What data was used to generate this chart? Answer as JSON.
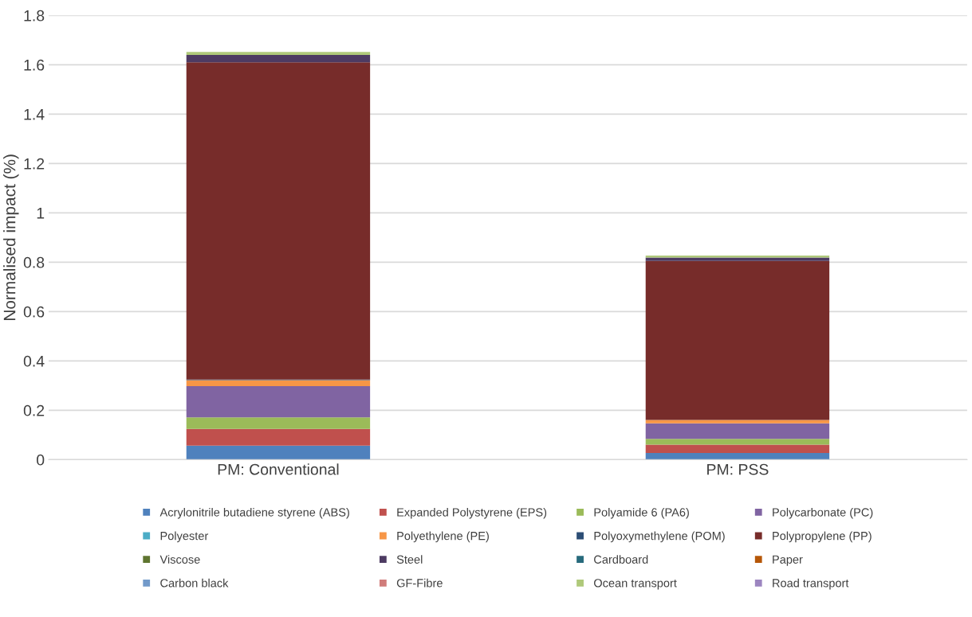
{
  "chart_data": {
    "type": "bar",
    "stacked": true,
    "ylabel": "Normalised impact (%)",
    "categories": [
      "PM: Conventional",
      "PM: PSS"
    ],
    "ylim": [
      0,
      1.8
    ],
    "yticks": [
      0,
      0.2,
      0.4,
      0.6,
      0.8,
      1,
      1.2,
      1.4,
      1.6,
      1.8
    ],
    "grid": "y",
    "legend": "bottom",
    "series": [
      {
        "name": "Acrylonitrile butadiene styrene (ABS)",
        "color": "#4f81bd",
        "values": [
          0.057,
          0.027
        ]
      },
      {
        "name": "Expanded Polystyrene (EPS)",
        "color": "#c0504d",
        "values": [
          0.068,
          0.034
        ]
      },
      {
        "name": "Polyamide 6 (PA6)",
        "color": "#9bbb59",
        "values": [
          0.046,
          0.023
        ]
      },
      {
        "name": "Polycarbonate (PC)",
        "color": "#8064a2",
        "values": [
          0.127,
          0.063
        ]
      },
      {
        "name": "Polyester",
        "color": "#4bacc6",
        "values": [
          null,
          null
        ]
      },
      {
        "name": "Polyethylene (PE)",
        "color": "#f79646",
        "values": [
          0.024,
          0.014
        ]
      },
      {
        "name": "Polyoxymethylene (POM)",
        "color": "#2c4d75",
        "values": [
          0.003,
          null
        ]
      },
      {
        "name": "Polypropylene (PP)",
        "color": "#772c2a",
        "values": [
          1.285,
          0.644
        ]
      },
      {
        "name": "Viscose",
        "color": "#5f7530",
        "values": [
          null,
          null
        ]
      },
      {
        "name": "Steel",
        "color": "#4d3b62",
        "values": [
          0.03,
          0.014
        ]
      },
      {
        "name": "Cardboard",
        "color": "#276a7c",
        "values": [
          null,
          null
        ]
      },
      {
        "name": "Paper",
        "color": "#b65708",
        "values": [
          null,
          null
        ]
      },
      {
        "name": "Carbon black",
        "color": "#729aca",
        "values": [
          null,
          null
        ]
      },
      {
        "name": "GF-Fibre",
        "color": "#d07c7a",
        "values": [
          null,
          null
        ]
      },
      {
        "name": "Ocean transport",
        "color": "#afc97a",
        "values": [
          0.012,
          0.008
        ]
      },
      {
        "name": "Road transport",
        "color": "#9c85c0",
        "values": [
          null,
          null
        ]
      }
    ]
  }
}
